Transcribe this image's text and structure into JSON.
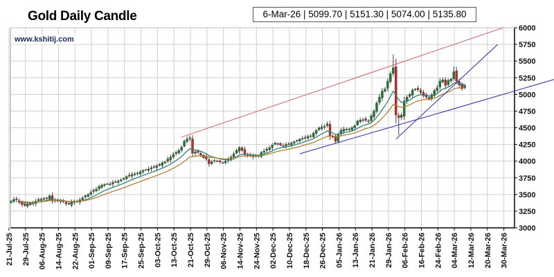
{
  "header": {
    "title": "Gold Daily Candle",
    "website": "www.kshitij.com",
    "ohlc_readout": "6-Mar-26 | 5099.70 | 5151.30 | 5074.00 | 5135.80"
  },
  "chart_data": {
    "type": "candlestick",
    "title": "Gold Daily Candle",
    "ylim": [
      3000,
      6000
    ],
    "y_ticks": [
      3000,
      3250,
      3500,
      3750,
      4000,
      4250,
      4500,
      4750,
      5000,
      5250,
      5500,
      5750,
      6000
    ],
    "y_axis_side": "right",
    "x_tick_labels": [
      "21-Jul-25",
      "29-Jul-25",
      "06-Aug-25",
      "14-Aug-25",
      "22-Aug-25",
      "01-Sep-25",
      "09-Sep-25",
      "17-Sep-25",
      "25-Sep-25",
      "03-Oct-25",
      "13-Oct-25",
      "21-Oct-25",
      "29-Oct-25",
      "06-Nov-25",
      "14-Nov-25",
      "24-Nov-25",
      "02-Dec-25",
      "10-Dec-25",
      "18-Dec-25",
      "26-Dec-25",
      "05-Jan-26",
      "13-Jan-26",
      "21-Jan-26",
      "29-Jan-26",
      "06-Feb-26",
      "16-Feb-26",
      "24-Feb-26",
      "04-Mar-26",
      "12-Mar-26",
      "20-Mar-26",
      "30-Mar-26"
    ],
    "trading_days_per_tick": 6,
    "grid": true,
    "last_candle": {
      "date": "6-Mar-26",
      "open": 5099.7,
      "high": 5151.3,
      "low": 5074.0,
      "close": 5135.8
    },
    "close": [
      3400,
      3425,
      3420,
      3380,
      3350,
      3335,
      3360,
      3345,
      3370,
      3400,
      3425,
      3430,
      3440,
      3445,
      3480,
      3400,
      3415,
      3410,
      3395,
      3390,
      3360,
      3355,
      3385,
      3390,
      3395,
      3420,
      3450,
      3480,
      3500,
      3530,
      3560,
      3580,
      3620,
      3640,
      3650,
      3660,
      3655,
      3680,
      3690,
      3700,
      3720,
      3740,
      3770,
      3790,
      3800,
      3810,
      3820,
      3840,
      3860,
      3870,
      3880,
      3900,
      3910,
      3930,
      3950,
      3975,
      3990,
      4030,
      4060,
      4100,
      4130,
      4160,
      4210,
      4300,
      4330,
      4350,
      4120,
      4140,
      4130,
      4090,
      4050,
      4030,
      3960,
      3990,
      4010,
      4000,
      3990,
      3980,
      4000,
      4030,
      4060,
      4110,
      4160,
      4200,
      4160,
      4100,
      4090,
      4080,
      4085,
      4070,
      4080,
      4130,
      4150,
      4180,
      4200,
      4240,
      4270,
      4260,
      4240,
      4230,
      4250,
      4255,
      4270,
      4290,
      4310,
      4330,
      4340,
      4350,
      4370,
      4380,
      4420,
      4460,
      4500,
      4510,
      4520,
      4560,
      4375,
      4360,
      4300,
      4400,
      4460,
      4480,
      4470,
      4480,
      4500,
      4530,
      4600,
      4615,
      4620,
      4610,
      4600,
      4680,
      4750,
      4870,
      4960,
      5050,
      5080,
      5200,
      5310,
      5400,
      4690,
      4650,
      4690,
      4900,
      4960,
      5000,
      5066,
      5080,
      5070,
      5030,
      4980,
      4960,
      4930,
      4995,
      5060,
      5100,
      5200,
      5220,
      5135,
      5210,
      5230,
      5340,
      5200,
      5140,
      5085,
      5135.8
    ],
    "wick_extremes": [
      {
        "index": 139,
        "high": 5600
      },
      {
        "index": 141,
        "low": 4390
      },
      {
        "index": 161,
        "high": 5420
      },
      {
        "index": 66,
        "high": 4390
      }
    ],
    "moving_averages": [
      {
        "period": 10,
        "color": "#2f7f78"
      },
      {
        "period": 20,
        "color": "#b08030"
      }
    ],
    "trendlines": [
      {
        "color": "#d06a6a",
        "from": {
          "index": 62,
          "price": 4360
        },
        "to": {
          "index": 179,
          "price": 6000
        }
      },
      {
        "color": "#3a3aa8",
        "from": {
          "index": 105,
          "price": 4110
        },
        "to": {
          "index": 198,
          "price": 5230
        }
      },
      {
        "color": "#3a3aa8",
        "from": {
          "index": 140,
          "price": 4330
        },
        "to": {
          "index": 177,
          "price": 5750
        }
      }
    ],
    "colors": {
      "up": "#1f7a2e",
      "down": "#c02a2a",
      "wick": "#444444",
      "grid": "#cfcfcf"
    }
  }
}
